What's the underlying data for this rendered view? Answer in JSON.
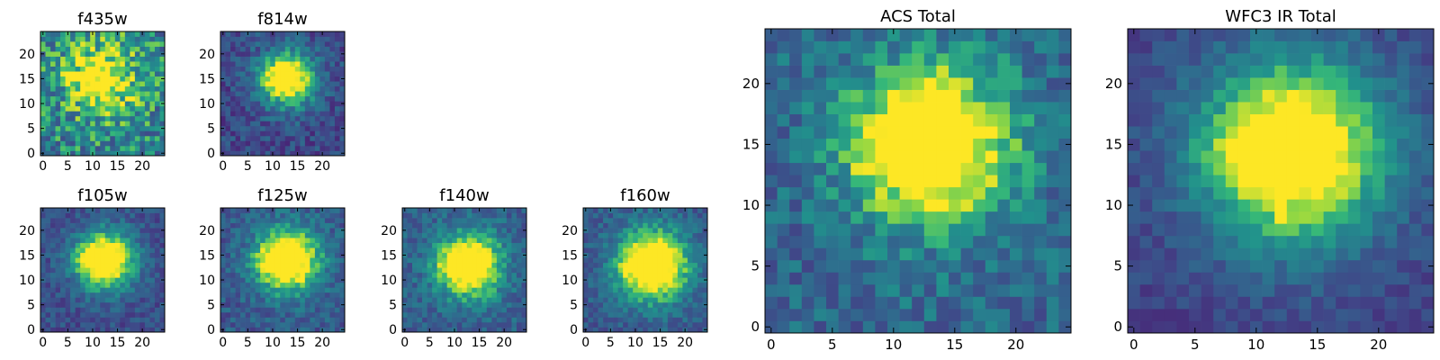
{
  "figure": {
    "colormap": "viridis",
    "colors": {
      "low": "#440154",
      "mid": "#21918c",
      "high": "#fde725"
    }
  },
  "chart_data": [
    {
      "type": "heatmap",
      "title": "f435w",
      "xlim": [
        0,
        24
      ],
      "ylim": [
        0,
        24
      ],
      "xticks": [
        "0",
        "5",
        "10",
        "15",
        "20"
      ],
      "yticks": [
        "0",
        "5",
        "10",
        "15",
        "20"
      ],
      "peak": [
        12,
        15
      ],
      "peak_width": 5,
      "peak_level": 0.55,
      "base_level": 0.55,
      "noise": 0.55,
      "seed": 11,
      "streak": 0
    },
    {
      "type": "heatmap",
      "title": "f814w",
      "xlim": [
        0,
        24
      ],
      "ylim": [
        0,
        24
      ],
      "xticks": [
        "0",
        "5",
        "10",
        "15",
        "20"
      ],
      "yticks": [
        "0",
        "5",
        "10",
        "15",
        "20"
      ],
      "peak": [
        13,
        15
      ],
      "peak_width": 4,
      "peak_level": 0.9,
      "base_level": 0.28,
      "noise": 0.3,
      "seed": 23,
      "streak": 0
    },
    {
      "type": "heatmap",
      "title": "f105w",
      "xlim": [
        0,
        24
      ],
      "ylim": [
        0,
        24
      ],
      "xticks": [
        "0",
        "5",
        "10",
        "15",
        "20"
      ],
      "yticks": [
        "0",
        "5",
        "10",
        "15",
        "20"
      ],
      "peak": [
        12.5,
        14
      ],
      "peak_width": 4.2,
      "peak_level": 0.95,
      "base_level": 0.3,
      "noise": 0.25,
      "seed": 37,
      "streak": 0
    },
    {
      "type": "heatmap",
      "title": "f125w",
      "xlim": [
        0,
        24
      ],
      "ylim": [
        0,
        24
      ],
      "xticks": [
        "0",
        "5",
        "10",
        "15",
        "20"
      ],
      "yticks": [
        "0",
        "5",
        "10",
        "15",
        "20"
      ],
      "peak": [
        13,
        14
      ],
      "peak_width": 4.5,
      "peak_level": 0.95,
      "base_level": 0.35,
      "noise": 0.28,
      "seed": 41,
      "streak": 0
    },
    {
      "type": "heatmap",
      "title": "f140w",
      "xlim": [
        0,
        24
      ],
      "ylim": [
        0,
        24
      ],
      "xticks": [
        "0",
        "5",
        "10",
        "15",
        "20"
      ],
      "yticks": [
        "0",
        "5",
        "10",
        "15",
        "20"
      ],
      "peak": [
        13,
        13
      ],
      "peak_width": 4.5,
      "peak_level": 0.92,
      "base_level": 0.38,
      "noise": 0.28,
      "seed": 53,
      "streak": 0
    },
    {
      "type": "heatmap",
      "title": "f160w",
      "xlim": [
        0,
        24
      ],
      "ylim": [
        0,
        24
      ],
      "xticks": [
        "0",
        "5",
        "10",
        "15",
        "20"
      ],
      "yticks": [
        "0",
        "5",
        "10",
        "15",
        "20"
      ],
      "peak": [
        13.5,
        13
      ],
      "peak_width": 5,
      "peak_level": 0.98,
      "base_level": 0.35,
      "noise": 0.25,
      "seed": 67,
      "streak": 0
    },
    {
      "type": "heatmap",
      "title": "ACS Total",
      "xlim": [
        0,
        24
      ],
      "ylim": [
        0,
        24
      ],
      "xticks": [
        "0",
        "5",
        "10",
        "15",
        "20"
      ],
      "yticks": [
        "0",
        "5",
        "10",
        "15",
        "20"
      ],
      "peak": [
        13,
        15
      ],
      "peak_width": 4.5,
      "peak_level": 0.92,
      "base_level": 0.42,
      "noise": 0.35,
      "seed": 79,
      "streak": 1
    },
    {
      "type": "heatmap",
      "title": "WFC3 IR Total",
      "xlim": [
        0,
        24
      ],
      "ylim": [
        0,
        24
      ],
      "xticks": [
        "0",
        "5",
        "10",
        "15",
        "20"
      ],
      "yticks": [
        "0",
        "5",
        "10",
        "15",
        "20"
      ],
      "peak": [
        13,
        14.5
      ],
      "peak_width": 5.5,
      "peak_level": 0.97,
      "base_level": 0.25,
      "noise": 0.18,
      "seed": 97,
      "streak": 1
    }
  ]
}
